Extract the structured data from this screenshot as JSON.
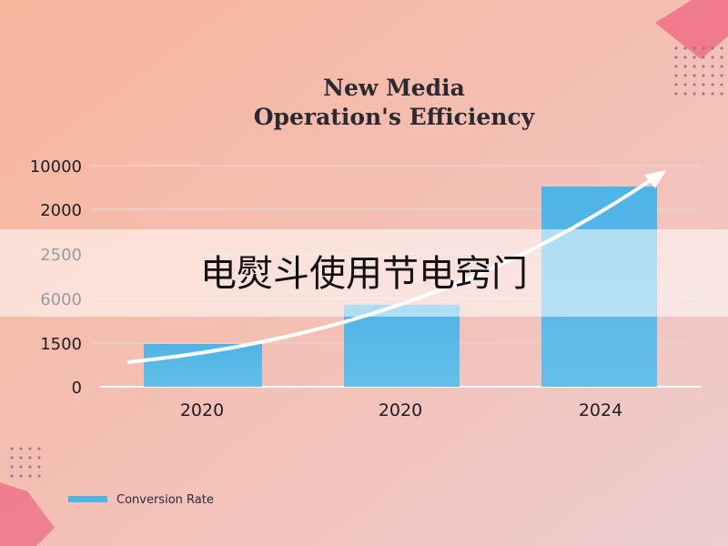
{
  "graphic": {
    "title_lines": [
      "New Media",
      "Operation's Efficiency"
    ],
    "y_axis_labels": [
      "10000",
      "2000",
      "2500",
      "6000",
      "1500",
      "0"
    ],
    "x_axis_labels": [
      "2020",
      "2020",
      "2024"
    ],
    "legend": "Conversion Rate"
  },
  "banner": {
    "text": "电熨斗使用节电窍门"
  }
}
